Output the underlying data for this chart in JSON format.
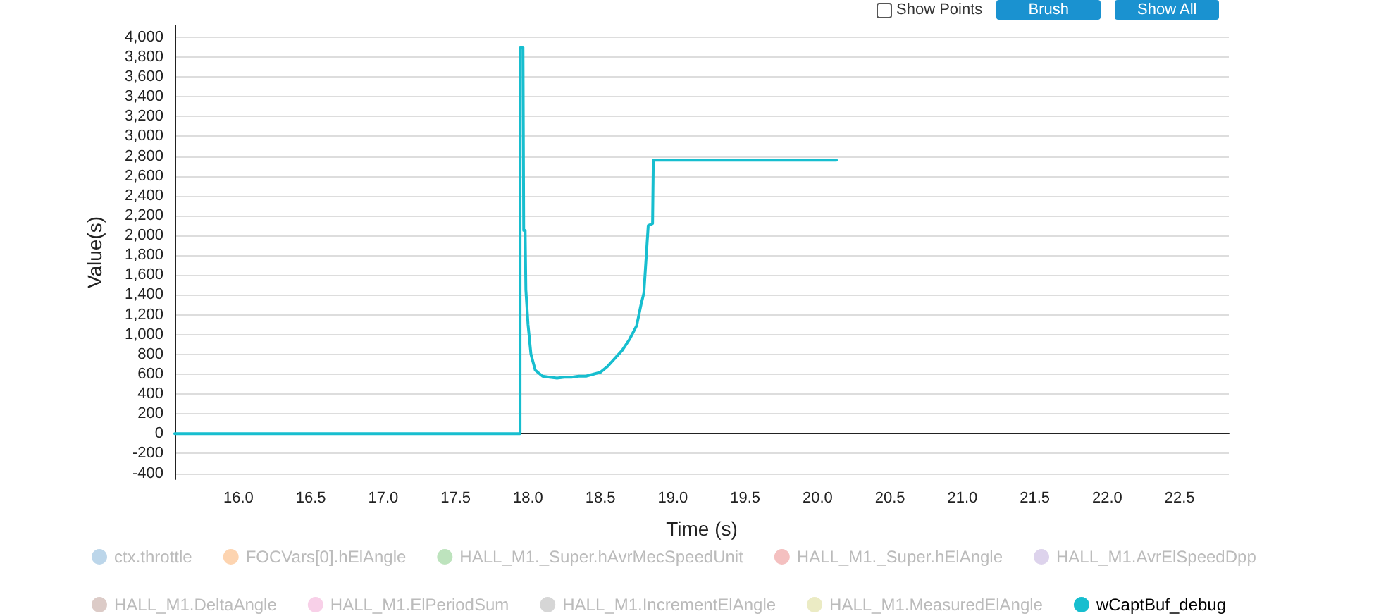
{
  "chart_data": {
    "type": "line",
    "xlabel": "Time (s)",
    "ylabel": "Value(s)",
    "annotations": [
      "Show Points",
      "Brush",
      "Show All"
    ],
    "xlim": [
      15.56,
      22.84
    ],
    "ylim": [
      -460,
      4120
    ],
    "xticks": [
      {
        "value": 16,
        "label": "16.0"
      },
      {
        "value": 16.5,
        "label": "16.5"
      },
      {
        "value": 17,
        "label": "17.0"
      },
      {
        "value": 17.5,
        "label": "17.5"
      },
      {
        "value": 18,
        "label": "18.0"
      },
      {
        "value": 18.5,
        "label": "18.5"
      },
      {
        "value": 19,
        "label": "19.0"
      },
      {
        "value": 19.5,
        "label": "19.5"
      },
      {
        "value": 20,
        "label": "20.0"
      },
      {
        "value": 20.5,
        "label": "20.5"
      },
      {
        "value": 21,
        "label": "21.0"
      },
      {
        "value": 21.5,
        "label": "21.5"
      },
      {
        "value": 22,
        "label": "22.0"
      },
      {
        "value": 22.5,
        "label": "22.5"
      }
    ],
    "yticks": [
      -400,
      -200,
      0,
      200,
      400,
      600,
      800,
      {
        "value": 1000,
        "label": "1,000"
      },
      {
        "value": 1200,
        "label": "1,200"
      },
      {
        "value": 1400,
        "label": "1,400"
      },
      {
        "value": 1600,
        "label": "1,600"
      },
      {
        "value": 1800,
        "label": "1,800"
      },
      {
        "value": 2000,
        "label": "2,000"
      },
      {
        "value": 2200,
        "label": "2,200"
      },
      {
        "value": 2400,
        "label": "2,400"
      },
      {
        "value": 2600,
        "label": "2,600"
      },
      {
        "value": 2800,
        "label": "2,800"
      },
      {
        "value": 3000,
        "label": "3,000"
      },
      {
        "value": 3200,
        "label": "3,200"
      },
      {
        "value": 3400,
        "label": "3,400"
      },
      {
        "value": 3600,
        "label": "3,600"
      },
      {
        "value": 3800,
        "label": "3,800"
      },
      {
        "value": 4000,
        "label": "4,000"
      }
    ],
    "grid": "y",
    "legend": "bottom",
    "marker": "none",
    "line_style": "solid",
    "series": [
      {
        "name": "ctx.throttle",
        "color": "#bcd6ea"
      },
      {
        "name": "FOCVars[0].hElAngle",
        "color": "#fdd4b0"
      },
      {
        "name": "HALL_M1._Super.hAvrMecSpeedUnit",
        "color": "#bde3bd"
      },
      {
        "name": "HALL_M1._Super.hElAngle",
        "color": "#f4c0c0"
      },
      {
        "name": "HALL_M1.AvrElSpeedDpp",
        "color": "#ddd3ec"
      },
      {
        "name": "HALL_M1.DeltaAngle",
        "color": "#dccbc7"
      },
      {
        "name": "HALL_M1.ElPeriodSum",
        "color": "#f8d0e8"
      },
      {
        "name": "HALL_M1.IncrementElAngle",
        "color": "#d6d6d6"
      },
      {
        "name": "HALL_M1.MeasuredElAngle",
        "color": "#ebebc4"
      },
      {
        "name": "wCaptBuf_debug",
        "color": "#17becf",
        "x": [
          15.56,
          17.945,
          17.945,
          17.965,
          17.97,
          17.98,
          17.985,
          18.0,
          18.02,
          18.05,
          18.1,
          18.15,
          18.2,
          18.25,
          18.3,
          18.35,
          18.4,
          18.45,
          18.5,
          18.55,
          18.6,
          18.65,
          18.7,
          18.75,
          18.78,
          18.8,
          18.81,
          18.83,
          18.86,
          18.865,
          20.13
        ],
        "values": [
          0,
          0,
          3900,
          3900,
          2050,
          2050,
          1450,
          1100,
          800,
          640,
          580,
          570,
          560,
          570,
          570,
          580,
          580,
          600,
          620,
          680,
          760,
          840,
          950,
          1090,
          1300,
          1420,
          1650,
          2100,
          2120,
          2760,
          2760
        ]
      }
    ]
  }
}
